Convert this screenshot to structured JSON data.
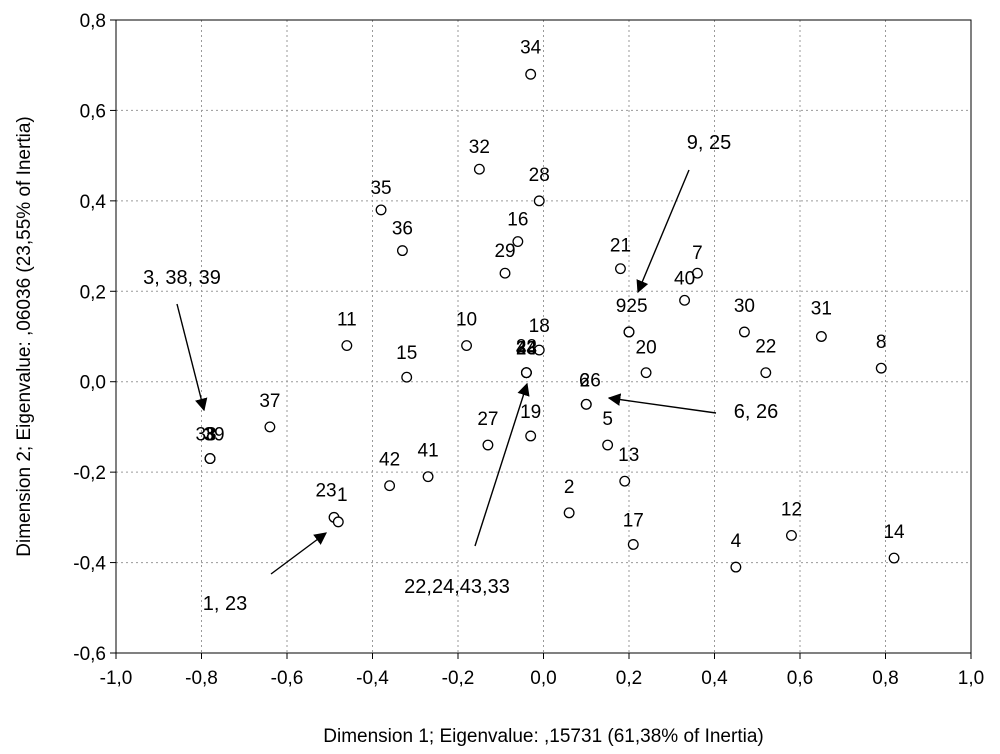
{
  "chart_data": {
    "type": "scatter",
    "title": "",
    "xlabel": "Dimension 1; Eigenvalue: ,15731 (61,38% of Inertia)",
    "ylabel": "Dimension 2; Eigenvalue: ,06036 (23,55% of Inertia)",
    "xlim": [
      -1.0,
      1.0
    ],
    "ylim": [
      -0.6,
      0.8
    ],
    "x_ticks": [
      -1.0,
      -0.8,
      -0.6,
      -0.4,
      -0.2,
      0.0,
      0.2,
      0.4,
      0.6,
      0.8,
      1.0
    ],
    "y_ticks": [
      -0.6,
      -0.4,
      -0.2,
      0.0,
      0.2,
      0.4,
      0.6,
      0.8
    ],
    "x_tick_labels": [
      "-1,0",
      "-0,8",
      "-0,6",
      "-0,4",
      "-0,2",
      "0,0",
      "0,2",
      "0,4",
      "0,6",
      "0,8",
      "1,0"
    ],
    "y_tick_labels": [
      "-0,6",
      "-0,4",
      "-0,2",
      "0,0",
      "0,2",
      "0,4",
      "0,6",
      "0,8"
    ],
    "grid": true,
    "grid_style": "dotted",
    "marker": "open-circle",
    "points": [
      {
        "label": "34",
        "x": -0.03,
        "y": 0.68
      },
      {
        "label": "32",
        "x": -0.15,
        "y": 0.47
      },
      {
        "label": "28",
        "x": -0.01,
        "y": 0.4
      },
      {
        "label": "35",
        "x": -0.38,
        "y": 0.38
      },
      {
        "label": "16",
        "x": -0.06,
        "y": 0.31
      },
      {
        "label": "36",
        "x": -0.33,
        "y": 0.29
      },
      {
        "label": "29",
        "x": -0.09,
        "y": 0.24
      },
      {
        "label": "21",
        "x": 0.18,
        "y": 0.25
      },
      {
        "label": "7",
        "x": 0.36,
        "y": 0.24
      },
      {
        "label": "40",
        "x": 0.33,
        "y": 0.18
      },
      {
        "label": "9",
        "x": 0.2,
        "y": 0.11
      },
      {
        "label": "25",
        "x": 0.2,
        "y": 0.11
      },
      {
        "label": "30",
        "x": 0.47,
        "y": 0.11
      },
      {
        "label": "31",
        "x": 0.65,
        "y": 0.1
      },
      {
        "label": "11",
        "x": -0.46,
        "y": 0.08
      },
      {
        "label": "10",
        "x": -0.18,
        "y": 0.08
      },
      {
        "label": "18",
        "x": -0.01,
        "y": 0.07
      },
      {
        "label": "20",
        "x": 0.24,
        "y": 0.02
      },
      {
        "label": "22",
        "x": 0.52,
        "y": 0.02
      },
      {
        "label": "8",
        "x": 0.79,
        "y": 0.03
      },
      {
        "label": "15",
        "x": -0.32,
        "y": 0.01
      },
      {
        "label": "22",
        "x": -0.04,
        "y": 0.02
      },
      {
        "label": "24",
        "x": -0.04,
        "y": 0.02
      },
      {
        "label": "43",
        "x": -0.04,
        "y": 0.02
      },
      {
        "label": "33",
        "x": -0.04,
        "y": 0.02
      },
      {
        "label": "6",
        "x": 0.1,
        "y": -0.05
      },
      {
        "label": "26",
        "x": 0.1,
        "y": -0.05
      },
      {
        "label": "37",
        "x": -0.64,
        "y": -0.1
      },
      {
        "label": "3",
        "x": -0.78,
        "y": -0.17
      },
      {
        "label": "38",
        "x": -0.78,
        "y": -0.17
      },
      {
        "label": "39",
        "x": -0.78,
        "y": -0.17
      },
      {
        "label": "19",
        "x": -0.03,
        "y": -0.12
      },
      {
        "label": "27",
        "x": -0.13,
        "y": -0.14
      },
      {
        "label": "5",
        "x": 0.15,
        "y": -0.14
      },
      {
        "label": "13",
        "x": 0.19,
        "y": -0.22
      },
      {
        "label": "41",
        "x": -0.27,
        "y": -0.21
      },
      {
        "label": "42",
        "x": -0.36,
        "y": -0.23
      },
      {
        "label": "2",
        "x": 0.06,
        "y": -0.29
      },
      {
        "label": "23",
        "x": -0.49,
        "y": -0.3
      },
      {
        "label": "1",
        "x": -0.48,
        "y": -0.31
      },
      {
        "label": "17",
        "x": 0.21,
        "y": -0.36
      },
      {
        "label": "12",
        "x": 0.58,
        "y": -0.34
      },
      {
        "label": "14",
        "x": 0.82,
        "y": -0.39
      },
      {
        "label": "4",
        "x": 0.45,
        "y": -0.41
      }
    ],
    "annotations": [
      {
        "text": "9, 25"
      },
      {
        "text": "3, 38, 39"
      },
      {
        "text": "6, 26"
      },
      {
        "text": "1, 23"
      },
      {
        "text": "22,24,43,33"
      }
    ]
  }
}
